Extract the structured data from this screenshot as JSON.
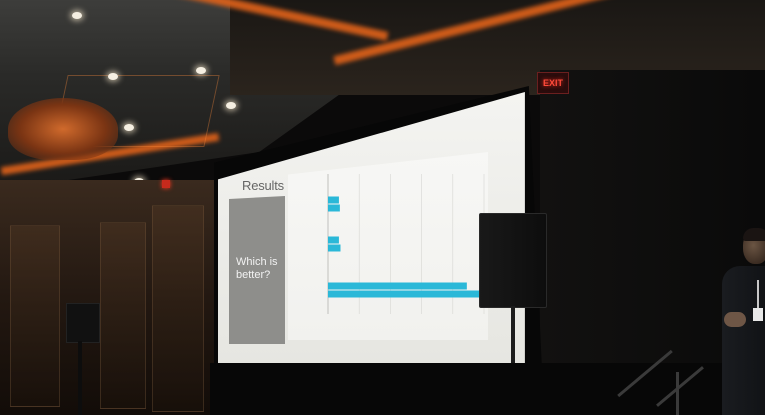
{
  "slide": {
    "title": "Results",
    "side_panel_text": "Which is better?"
  },
  "room": {
    "exit_sign": "EXIT"
  },
  "colors": {
    "bar": "#2ab8d8",
    "cove_light": "#e0621a",
    "screen": "#f2f2ef"
  },
  "chart_data": {
    "type": "bar",
    "orientation": "horizontal",
    "categories": [
      "",
      "",
      ""
    ],
    "series": [
      {
        "values": [
          35,
          35,
          445
        ]
      },
      {
        "values": [
          38,
          40,
          495
        ]
      }
    ],
    "xlim": [
      0,
      500
    ],
    "grid": true
  }
}
